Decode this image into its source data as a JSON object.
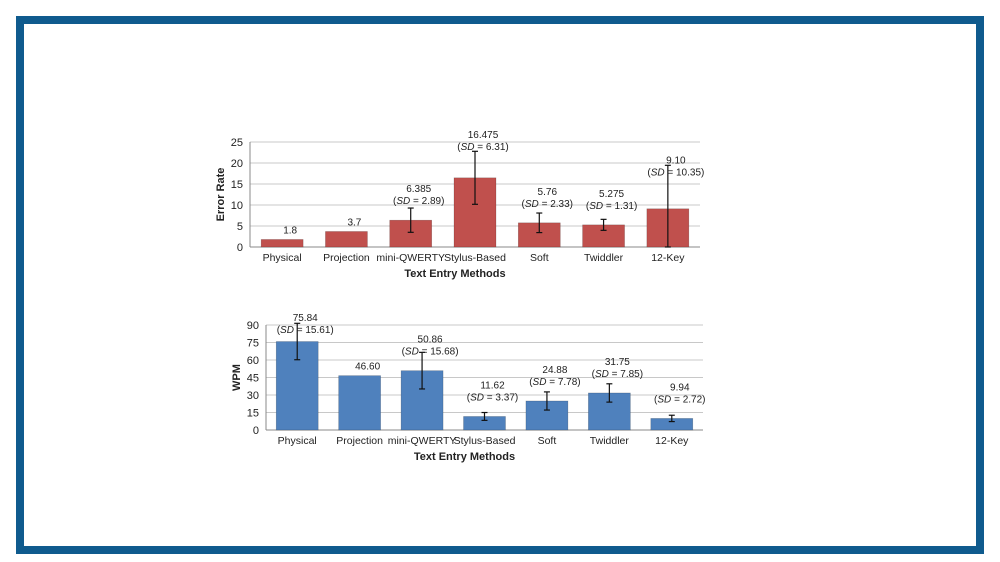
{
  "chart_data": [
    {
      "type": "bar",
      "title": "",
      "xlabel": "Text Entry Methods",
      "ylabel": "Error Rate",
      "ylim": [
        0,
        25
      ],
      "yticks": [
        0,
        5,
        10,
        15,
        20,
        25
      ],
      "grid": true,
      "bar_color": "#c0504d",
      "categories": [
        "Physical",
        "Projection",
        "mini-QWERTY",
        "Stylus-Based",
        "Soft",
        "Twiddler",
        "12-Key"
      ],
      "values": [
        1.8,
        3.7,
        6.385,
        16.475,
        5.76,
        5.275,
        9.1
      ],
      "sd": [
        null,
        null,
        2.89,
        6.31,
        2.33,
        1.31,
        10.35
      ],
      "value_labels": [
        "1.8",
        "3.7",
        "6.385",
        "16.475",
        "5.76",
        "5.275",
        "9.10"
      ],
      "sd_labels": [
        "",
        "",
        "(SD = 2.89)",
        "(SD = 6.31)",
        "(SD = 2.33)",
        "(SD = 1.31)",
        "(SD = 10.35)"
      ]
    },
    {
      "type": "bar",
      "title": "",
      "xlabel": "Text Entry Methods",
      "ylabel": "WPM",
      "ylim": [
        0,
        90
      ],
      "yticks": [
        0,
        15,
        30,
        45,
        60,
        75,
        90
      ],
      "grid": true,
      "bar_color": "#4f81bd",
      "categories": [
        "Physical",
        "Projection",
        "mini-QWERTY",
        "Stylus-Based",
        "Soft",
        "Twiddler",
        "12-Key"
      ],
      "values": [
        75.84,
        46.6,
        50.86,
        11.62,
        24.88,
        31.75,
        9.94
      ],
      "sd": [
        15.61,
        null,
        15.68,
        3.37,
        7.78,
        7.85,
        2.72
      ],
      "value_labels": [
        "75.84",
        "46.60",
        "50.86",
        "11.62",
        "24.88",
        "31.75",
        "9.94"
      ],
      "sd_labels": [
        "(SD = 15.61)",
        "",
        "(SD = 15.68)",
        "(SD = 3.37)",
        "(SD = 7.78)",
        "(SD = 7.85)",
        "(SD = 2.72)"
      ]
    }
  ]
}
